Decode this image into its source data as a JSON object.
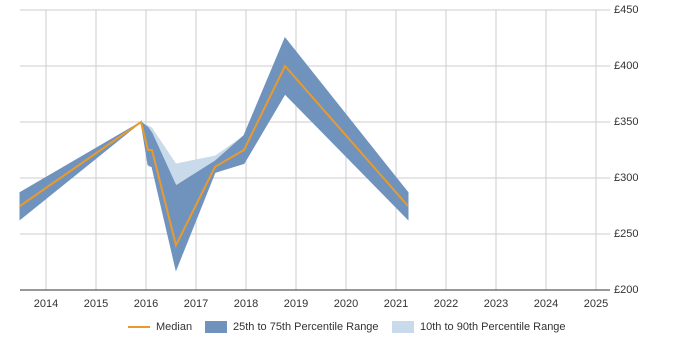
{
  "chart_data": {
    "type": "range-line",
    "x": [
      2013.48,
      2015.9,
      2016.04,
      2016.12,
      2016.6,
      2017.38,
      2017.96,
      2018.78,
      2021.24
    ],
    "series": [
      {
        "name": "Median",
        "color": "#e89a2c",
        "values": [
          275,
          350,
          325,
          325,
          240,
          310,
          325,
          400,
          275
        ]
      },
      {
        "name": "25th to 75th Percentile Range",
        "color": "#7093be",
        "low": [
          263,
          350,
          312,
          310,
          218,
          305,
          313,
          375,
          263
        ],
        "high": [
          287,
          350,
          345,
          340,
          293,
          315,
          338,
          425,
          287
        ]
      },
      {
        "name": "10th to 90th Percentile Range",
        "color": "#c9daeb",
        "low": [
          263,
          350,
          310,
          310,
          218,
          305,
          313,
          375,
          263
        ],
        "high": [
          287,
          350,
          347,
          345,
          313,
          320,
          338,
          425,
          287
        ]
      }
    ],
    "xlim": [
      2013.48,
      2025.28
    ],
    "xticks": [
      2014,
      2015,
      2016,
      2017,
      2018,
      2019,
      2020,
      2021,
      2022,
      2023,
      2024,
      2025
    ],
    "ylim": [
      200,
      450
    ],
    "yticks": [
      {
        "value": 200,
        "label": "£200"
      },
      {
        "value": 250,
        "label": "£250"
      },
      {
        "value": 300,
        "label": "£300"
      },
      {
        "value": 350,
        "label": "£350"
      },
      {
        "value": 400,
        "label": "£400"
      },
      {
        "value": 450,
        "label": "£450"
      }
    ],
    "grid": true
  }
}
